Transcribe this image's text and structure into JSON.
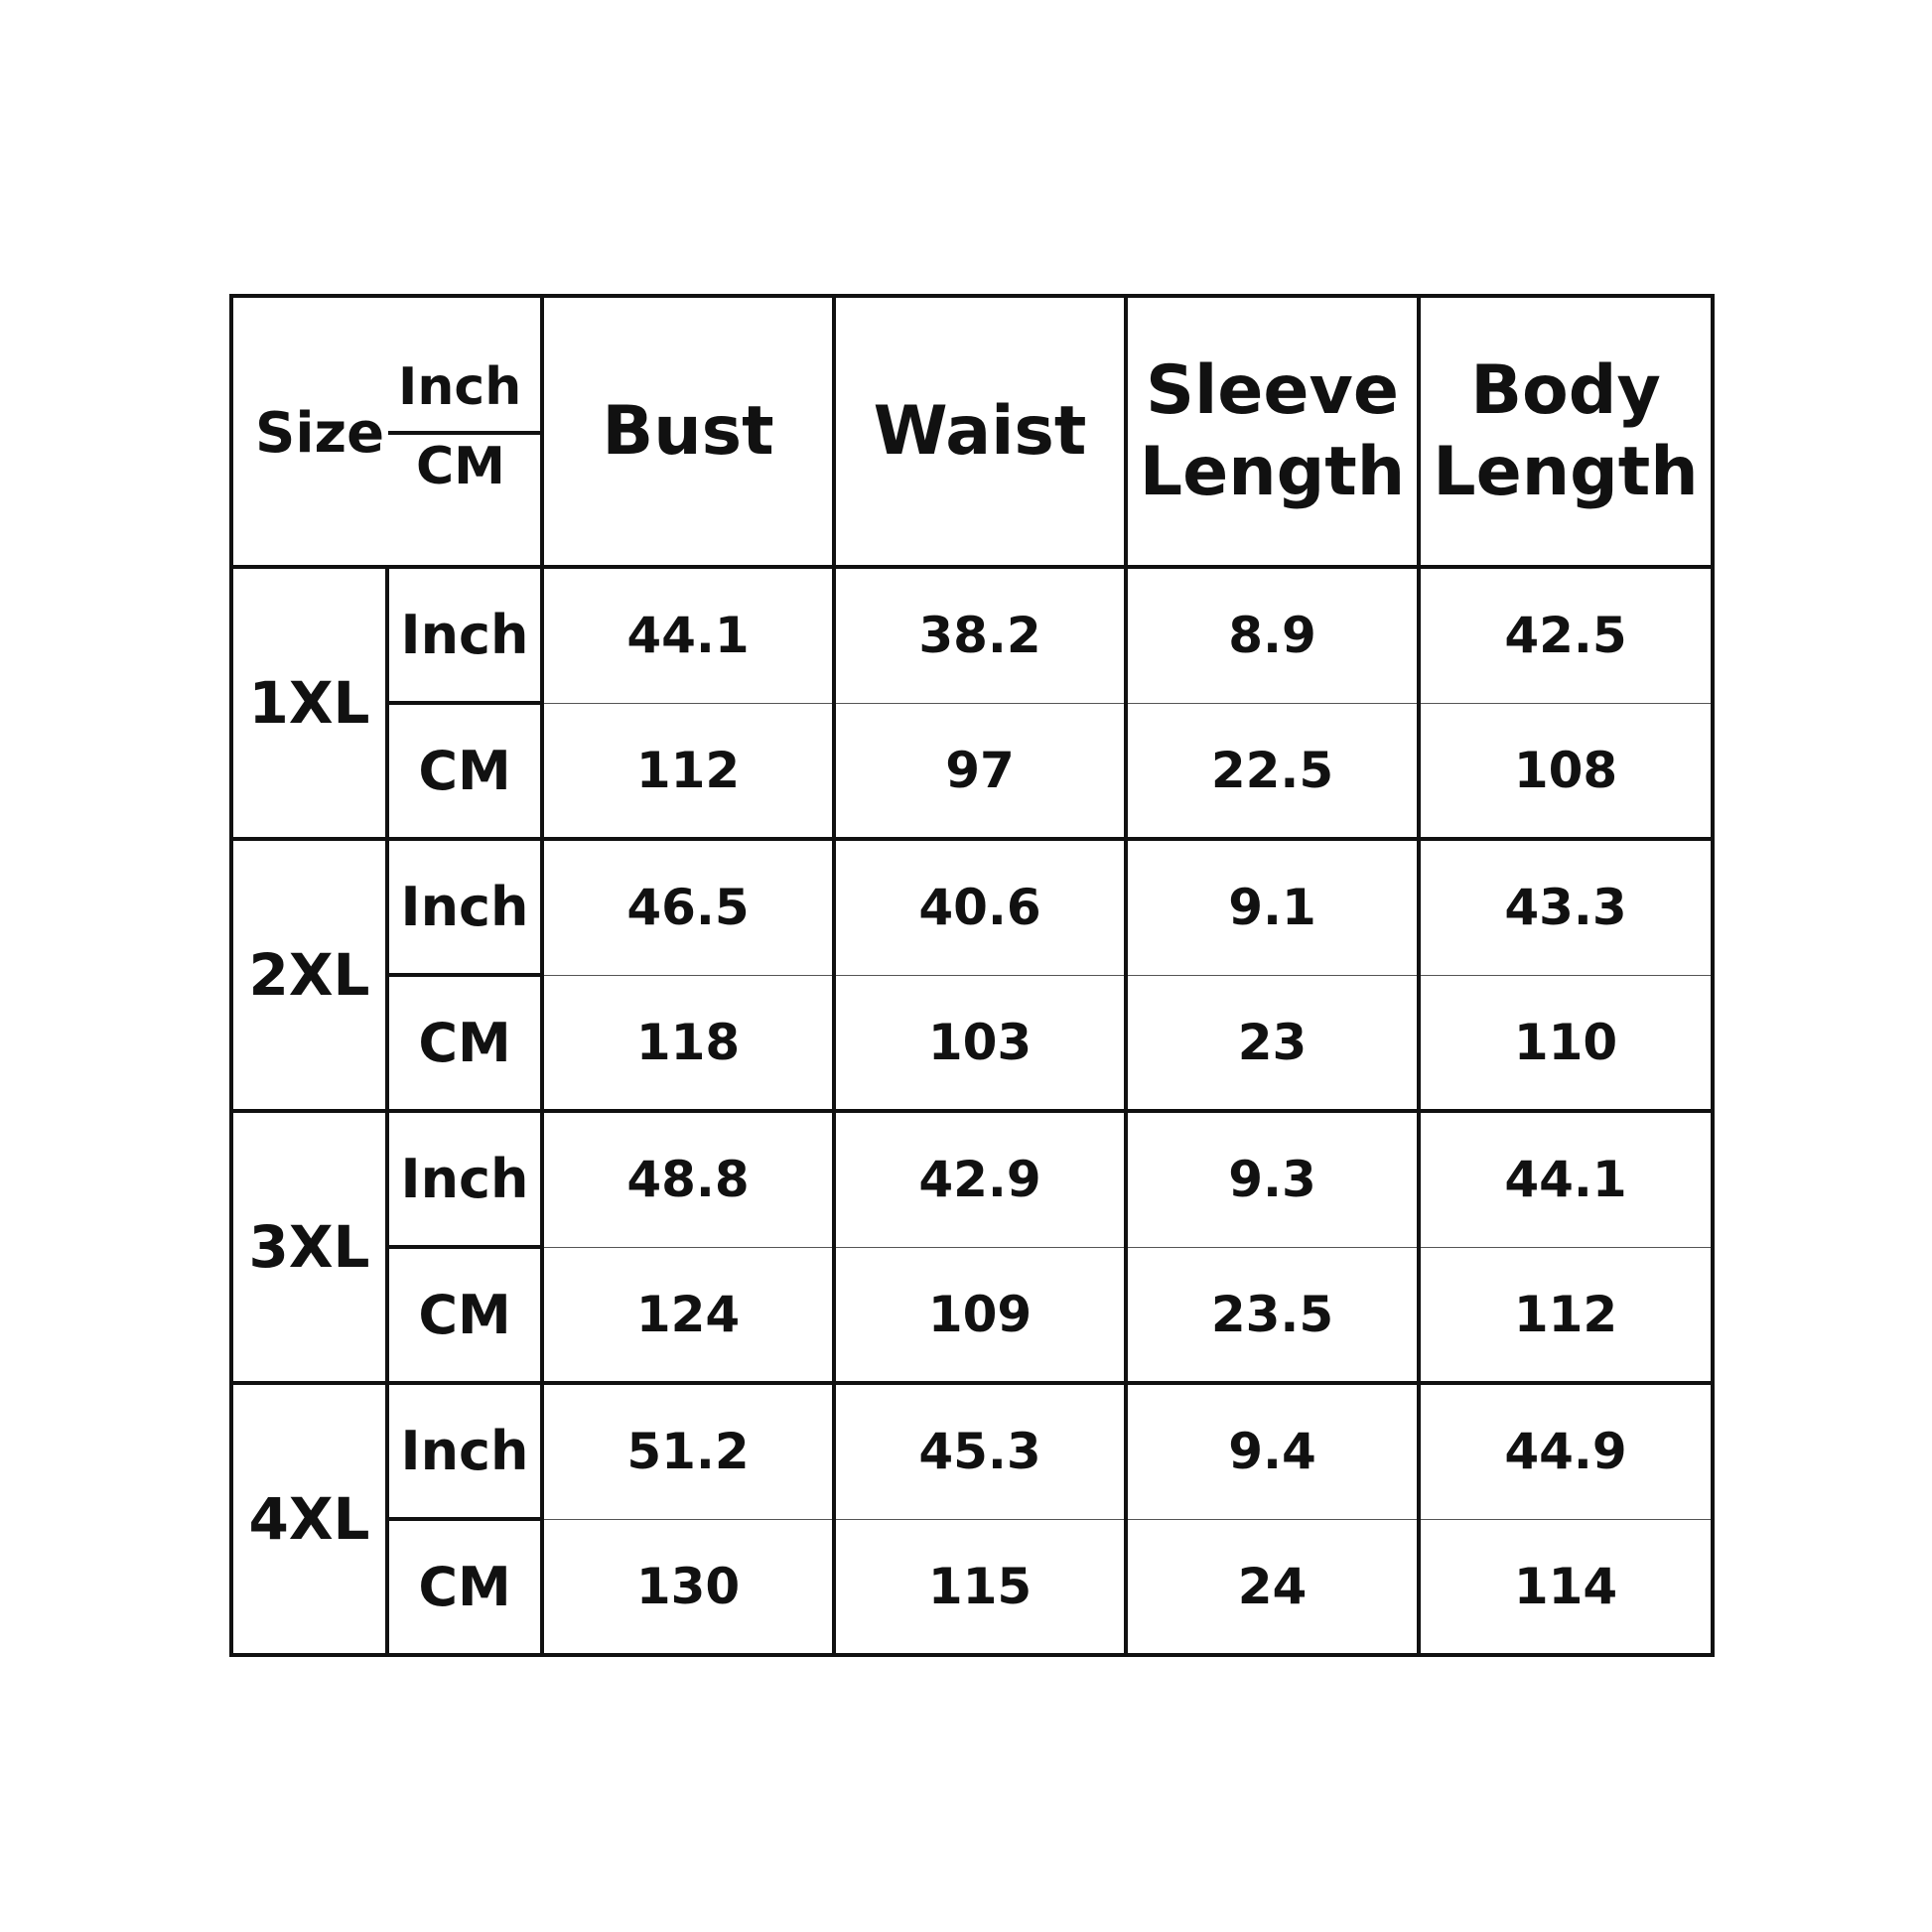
{
  "header": {
    "size": "Size",
    "unit_top": "Inch",
    "unit_bottom": "CM",
    "columns": [
      "Bust",
      "Waist",
      "Sleeve Length",
      "Body Length"
    ]
  },
  "rows": [
    {
      "size": "1XL",
      "inch_label": "Inch",
      "cm_label": "CM",
      "inch": [
        "44.1",
        "38.2",
        "8.9",
        "42.5"
      ],
      "cm": [
        "112",
        "97",
        "22.5",
        "108"
      ]
    },
    {
      "size": "2XL",
      "inch_label": "Inch",
      "cm_label": "CM",
      "inch": [
        "46.5",
        "40.6",
        "9.1",
        "43.3"
      ],
      "cm": [
        "118",
        "103",
        "23",
        "110"
      ]
    },
    {
      "size": "3XL",
      "inch_label": "Inch",
      "cm_label": "CM",
      "inch": [
        "48.8",
        "42.9",
        "9.3",
        "44.1"
      ],
      "cm": [
        "124",
        "109",
        "23.5",
        "112"
      ]
    },
    {
      "size": "4XL",
      "inch_label": "Inch",
      "cm_label": "CM",
      "inch": [
        "51.2",
        "45.3",
        "9.4",
        "44.9"
      ],
      "cm": [
        "130",
        "115",
        "24",
        "114"
      ]
    }
  ]
}
